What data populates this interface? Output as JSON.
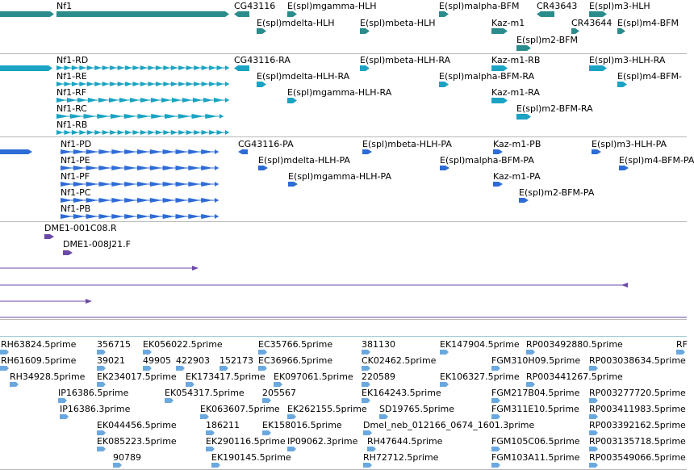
{
  "colors": {
    "gene": "#2b8c8c",
    "transcript": "#1aa3c2",
    "protein": "#2d6bd6",
    "alignment": "#6b49a8",
    "est": "#6aa8e0",
    "divider": "#b8b8b8"
  },
  "tracks": {
    "genes": {
      "labels": [
        {
          "name": "nf1",
          "text": "Nf1"
        },
        {
          "name": "cg43116",
          "text": "CG43116"
        },
        {
          "name": "espl-mgamma-hlh",
          "text": "E(spl)mgamma-HLH"
        },
        {
          "name": "espl-malpha-bfm",
          "text": "E(spl)malpha-BFM"
        },
        {
          "name": "cr43643",
          "text": "CR43643"
        },
        {
          "name": "espl-m3-hlh",
          "text": "E(spl)m3-HLH"
        },
        {
          "name": "espl-mdelta-hlh",
          "text": "E(spl)mdelta-HLH"
        },
        {
          "name": "espl-mbeta-hlh",
          "text": "E(spl)mbeta-HLH"
        },
        {
          "name": "kaz-m1",
          "text": "Kaz-m1"
        },
        {
          "name": "cr43644",
          "text": "CR43644"
        },
        {
          "name": "espl-m4-bfm",
          "text": "E(spl)m4-BFM"
        },
        {
          "name": "espl-m2-bfm",
          "text": "E(spl)m2-BFM"
        }
      ]
    },
    "transcripts": {
      "labels": [
        {
          "name": "nf1-rd",
          "text": "Nf1-RD"
        },
        {
          "name": "cg43116-ra",
          "text": "CG43116-RA"
        },
        {
          "name": "espl-mbeta-hlh-ra",
          "text": "E(spl)mbeta-HLH-RA"
        },
        {
          "name": "kaz-m1-rb",
          "text": "Kaz-m1-RB"
        },
        {
          "name": "espl-m3-hlh-ra",
          "text": "E(spl)m3-HLH-RA"
        },
        {
          "name": "nf1-re",
          "text": "Nf1-RE"
        },
        {
          "name": "espl-mdelta-hlh-ra",
          "text": "E(spl)mdelta-HLH-RA"
        },
        {
          "name": "espl-malpha-bfm-ra",
          "text": "E(spl)malpha-BFM-RA"
        },
        {
          "name": "espl-m4-bfm-ra",
          "text": "E(spl)m4-BFM-"
        },
        {
          "name": "nf1-rf",
          "text": "Nf1-RF"
        },
        {
          "name": "espl-mgamma-hlh-ra",
          "text": "E(spl)mgamma-HLH-RA"
        },
        {
          "name": "kaz-m1-ra",
          "text": "Kaz-m1-RA"
        },
        {
          "name": "nf1-rc",
          "text": "Nf1-RC"
        },
        {
          "name": "espl-m2-bfm-ra",
          "text": "E(spl)m2-BFM-RA"
        },
        {
          "name": "nf1-rb",
          "text": "Nf1-RB"
        }
      ]
    },
    "proteins": {
      "labels": [
        {
          "name": "nf1-pd",
          "text": "Nf1-PD"
        },
        {
          "name": "cg43116-pa",
          "text": "CG43116-PA"
        },
        {
          "name": "espl-mbeta-hlh-pa",
          "text": "E(spl)mbeta-HLH-PA"
        },
        {
          "name": "kaz-m1-pb",
          "text": "Kaz-m1-PB"
        },
        {
          "name": "espl-m3-hlh-pa",
          "text": "E(spl)m3-HLH-PA"
        },
        {
          "name": "nf1-pe",
          "text": "Nf1-PE"
        },
        {
          "name": "espl-mdelta-hlh-pa",
          "text": "E(spl)mdelta-HLH-PA"
        },
        {
          "name": "espl-malpha-bfm-pa",
          "text": "E(spl)malpha-BFM-PA"
        },
        {
          "name": "espl-m4-bfm-pa",
          "text": "E(spl)m4-BFM-PA"
        },
        {
          "name": "nf1-pf",
          "text": "Nf1-PF"
        },
        {
          "name": "espl-mgamma-hlh-pa",
          "text": "E(spl)mgamma-HLH-PA"
        },
        {
          "name": "kaz-m1-pa",
          "text": "Kaz-m1-PA"
        },
        {
          "name": "nf1-pc",
          "text": "Nf1-PC"
        },
        {
          "name": "espl-m2-bfm-pa",
          "text": "E(spl)m2-BFM-PA"
        },
        {
          "name": "nf1-pb",
          "text": "Nf1-PB"
        }
      ]
    },
    "alignments": {
      "labels": [
        {
          "name": "dme1-001c08-r",
          "text": "DME1-001C08.R"
        },
        {
          "name": "dme1-008j21-f",
          "text": "DME1-008J21.F"
        }
      ]
    },
    "ests": {
      "labels": [
        {
          "name": "rh63824",
          "text": "RH63824.5prime"
        },
        {
          "name": "e356715",
          "text": "356715"
        },
        {
          "name": "ek056022",
          "text": "EK056022.5prime"
        },
        {
          "name": "ec35766",
          "text": "EC35766.5prime"
        },
        {
          "name": "e381130",
          "text": "381130"
        },
        {
          "name": "ek147904",
          "text": "EK147904.5prime"
        },
        {
          "name": "rp003492880",
          "text": "RP003492880.5prime"
        },
        {
          "name": "rp-edge",
          "text": "RF"
        },
        {
          "name": "rh61609",
          "text": "RH61609.5prime"
        },
        {
          "name": "e39021",
          "text": "39021"
        },
        {
          "name": "e49905",
          "text": "49905"
        },
        {
          "name": "e422903",
          "text": "422903"
        },
        {
          "name": "e152173",
          "text": "152173"
        },
        {
          "name": "ec36966",
          "text": "EC36966.5prime"
        },
        {
          "name": "ck02462",
          "text": "CK02462.5prime"
        },
        {
          "name": "fgm310h09",
          "text": "FGM310H09.5prime"
        },
        {
          "name": "rp003038634",
          "text": "RP003038634.5prime"
        },
        {
          "name": "rh34928",
          "text": "RH34928.5prime"
        },
        {
          "name": "ek234017",
          "text": "EK234017.5prime"
        },
        {
          "name": "ek173417",
          "text": "EK173417.5prime"
        },
        {
          "name": "ek097061",
          "text": "EK097061.5prime"
        },
        {
          "name": "e220589",
          "text": "220589"
        },
        {
          "name": "ek106327",
          "text": "EK106327.5prime"
        },
        {
          "name": "rp003441267",
          "text": "RP003441267.5prime"
        },
        {
          "name": "ip16386-a",
          "text": "IP16386.5prime"
        },
        {
          "name": "ek054317",
          "text": "EK054317.5prime"
        },
        {
          "name": "e205567",
          "text": "205567"
        },
        {
          "name": "ek164243",
          "text": "EK164243.5prime"
        },
        {
          "name": "fgm217b04",
          "text": "FGM217B04.5prime"
        },
        {
          "name": "rp003277720",
          "text": "RP003277720.5prime"
        },
        {
          "name": "ip16386-b",
          "text": "IP16386.3prime"
        },
        {
          "name": "ek063607",
          "text": "EK063607.5prime"
        },
        {
          "name": "ek262155",
          "text": "EK262155.5prime"
        },
        {
          "name": "sd19765",
          "text": "SD19765.5prime"
        },
        {
          "name": "fgm311e10",
          "text": "FGM311E10.5prime"
        },
        {
          "name": "rp003411983",
          "text": "RP003411983.5prime"
        },
        {
          "name": "ek044456",
          "text": "EK044456.5prime"
        },
        {
          "name": "e186211",
          "text": "186211"
        },
        {
          "name": "ek158016",
          "text": "EK158016.5prime"
        },
        {
          "name": "dmel-neb",
          "text": "Dmel_neb_012166_0674_1601.3prime"
        },
        {
          "name": "rp003392162",
          "text": "RP003392162.5prime"
        },
        {
          "name": "ek085223",
          "text": "EK085223.5prime"
        },
        {
          "name": "ek290116",
          "text": "EK290116.5prime"
        },
        {
          "name": "ip09062",
          "text": "IP09062.3prime"
        },
        {
          "name": "rh47644",
          "text": "RH47644.5prime"
        },
        {
          "name": "fgm105c06",
          "text": "FGM105C06.5prime"
        },
        {
          "name": "rp003135718",
          "text": "RP003135718.5prime"
        },
        {
          "name": "e90789",
          "text": "90789"
        },
        {
          "name": "ek190145",
          "text": "EK190145.5prime"
        },
        {
          "name": "rh72712",
          "text": "RH72712.5prime"
        },
        {
          "name": "fgm103a11",
          "text": "FGM103A11.5prime"
        },
        {
          "name": "rp003549066",
          "text": "RP003549066.5prime"
        }
      ]
    }
  }
}
